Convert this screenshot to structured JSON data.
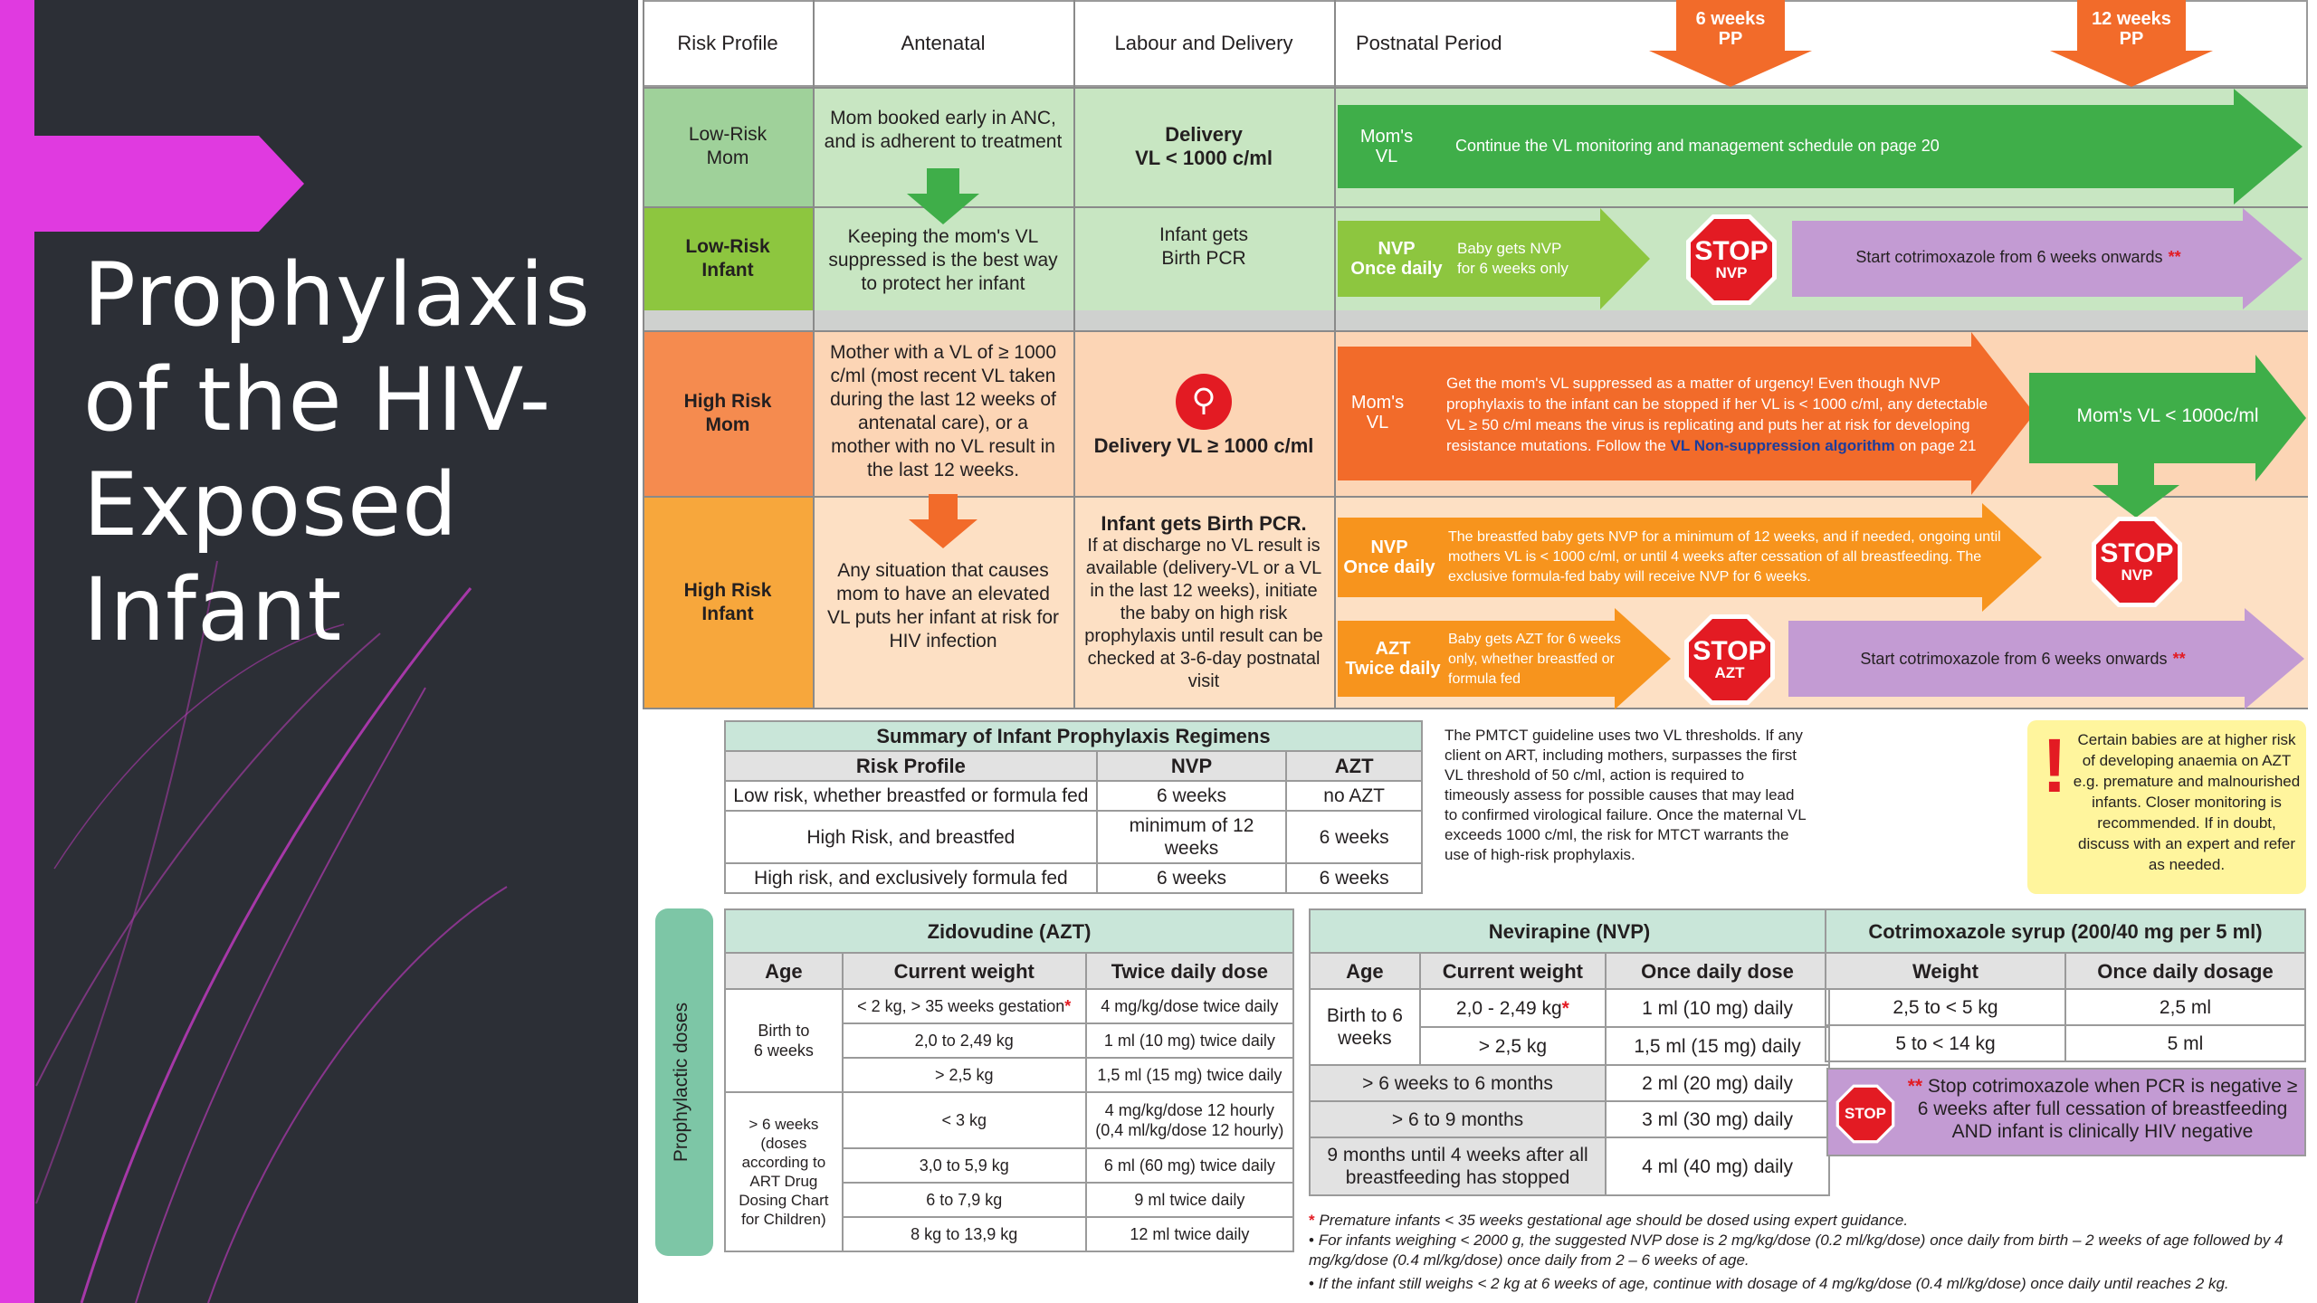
{
  "slide": {
    "title_lines": [
      "Prophylaxis",
      "of the HIV-",
      "Exposed",
      "Infant"
    ]
  },
  "colors": {
    "panel": "#2c2f36",
    "accent": "#e03ae0",
    "green_dark": "#3fae49",
    "green_mid": "#8dc63f",
    "green_light": "#c8e6c2",
    "orange_dark": "#f26b2a",
    "orange_mid": "#f7941d",
    "orange_light": "#fcd5b5",
    "purple": "#c39bd3",
    "stop_red": "#e31b23",
    "teal": "#7dc6a6",
    "yellow_note": "#fff59d"
  },
  "header": {
    "risk_profile": "Risk Profile",
    "antenatal": "Antenatal",
    "labour": "Labour and Delivery",
    "postnatal": "Postnatal Period",
    "marker_6": "6 weeks\nPP",
    "marker_12": "12 weeks\nPP"
  },
  "low": {
    "mom_label": "Low-Risk\nMom",
    "mom_antenatal": "Mom booked early in ANC,\nand is adherent to treatment",
    "mom_delivery": "Delivery\nVL < 1000 c/ml",
    "mom_arrow_label": "Mom's\nVL",
    "mom_arrow_text": "Continue the VL monitoring and management schedule on page 20",
    "infant_label": "Low-Risk\nInfant",
    "infant_antenatal": "Keeping the mom's VL\nsuppressed is the best way\nto protect her infant",
    "infant_delivery": "Infant gets\nBirth PCR",
    "nvp_label": "NVP\nOnce daily",
    "nvp_text": "Baby gets NVP\nfor 6 weeks only",
    "stop_word": "STOP",
    "stop_nvp": "NVP",
    "cotri_text": "Start cotrimoxazole from 6 weeks onwards",
    "stars": "**"
  },
  "high": {
    "mom_label": "High Risk\nMom",
    "mom_antenatal": "Mother with a VL of ≥ 1000 c/ml (most recent VL taken during the last 12 weeks of antenatal care), or a mother with no VL result in the last 12 weeks.",
    "mom_delivery": "Delivery VL ≥ 1000 c/ml",
    "mom_arrow_label": "Mom's\nVL",
    "mom_arrow_text_a": "Get the mom's VL suppressed as a matter of urgency! Even though NVP prophylaxis to the infant can be stopped if her VL is < 1000 c/ml, any detectable VL ≥ 50 c/ml means the virus is replicating and puts her at risk for developing resistance mutations. Follow the ",
    "mom_arrow_link": "VL Non-suppression algorithm",
    "mom_arrow_text_b": " on page 21",
    "mom_suppressed": "Mom's VL < 1000c/ml",
    "infant_label": "High Risk\nInfant",
    "infant_antenatal": "Any situation that causes mom to have an elevated VL puts her infant at risk for HIV infection",
    "infant_delivery_bold": "Infant gets Birth PCR.",
    "infant_delivery": "If at discharge no VL result is available (delivery-VL or a VL in the last 12 weeks), initiate the baby on high risk prophylaxis until result can be checked at 3-6-day postnatal visit",
    "nvp_label": "NVP\nOnce daily",
    "nvp_text": "The breastfed baby gets NVP for a minimum of 12 weeks, and if needed, ongoing until mothers VL is < 1000 c/ml, or until 4 weeks after cessation of all breastfeeding. The exclusive formula-fed baby will receive NVP for 6 weeks.",
    "azt_label": "AZT\nTwice daily",
    "azt_text": "Baby gets AZT for 6 weeks only, whether breastfed or formula fed",
    "stop_word": "STOP",
    "stop_nvp": "NVP",
    "stop_azt": "AZT",
    "cotri_text": "Start cotrimoxazole from 6 weeks onwards",
    "stars": "**"
  },
  "summary": {
    "title": "Summary of Infant Prophylaxis Regimens",
    "headers": [
      "Risk Profile",
      "NVP",
      "AZT"
    ],
    "rows": [
      [
        "Low risk, whether breastfed or formula fed",
        "6 weeks",
        "no AZT"
      ],
      [
        "High Risk, and breastfed",
        "minimum of 12 weeks",
        "6 weeks"
      ],
      [
        "High risk, and exclusively formula fed",
        "6 weeks",
        "6 weeks"
      ]
    ]
  },
  "pmtct_note": "The PMTCT guideline uses two VL thresholds. If any client on ART, including mothers, surpasses the first VL threshold of 50 c/ml, action is required to timeously assess for possible causes that may lead to confirmed virological failure. Once the maternal VL exceeds 1000 c/ml, the risk for MTCT warrants the use of high-risk prophylaxis.",
  "warning_note": "Certain babies are at higher risk of developing anaemia on AZT e.g. premature and malnourished infants. Closer monitoring is recommended. If in doubt, discuss with an expert and refer as needed.",
  "doses_label": "Prophylactic doses",
  "azt_table": {
    "title": "Zidovudine (AZT)",
    "headers": [
      "Age",
      "Current weight",
      "Twice daily dose"
    ],
    "age1": "Birth to\n6 weeks",
    "age2": "> 6 weeks\n(doses\naccording to\nART Drug\nDosing Chart\nfor Children)",
    "rows1": [
      [
        "< 2 kg, > 35 weeks gestation",
        "4 mg/kg/dose twice daily"
      ],
      [
        "2,0 to 2,49 kg",
        "1 ml (10 mg) twice daily"
      ],
      [
        "> 2,5 kg",
        "1,5 ml (15 mg) twice daily"
      ]
    ],
    "rows2": [
      [
        "< 3 kg",
        "4 mg/kg/dose 12 hourly\n(0,4 ml/kg/dose 12 hourly)"
      ],
      [
        "3,0 to 5,9 kg",
        "6 ml (60 mg) twice daily"
      ],
      [
        "6 to 7,9 kg",
        "9 ml twice daily"
      ],
      [
        "8 kg to 13,9 kg",
        "12 ml twice daily"
      ]
    ],
    "star": "*"
  },
  "nvp_table": {
    "title": "Nevirapine (NVP)",
    "headers": [
      "Age",
      "Current weight",
      "Once daily dose"
    ],
    "age1": "Birth to 6\nweeks",
    "rows1": [
      [
        "2,0 - 2,49 kg",
        "1 ml (10 mg) daily"
      ],
      [
        "> 2,5 kg",
        "1,5 ml (15 mg) daily"
      ]
    ],
    "rows2": [
      [
        "> 6 weeks to 6 months",
        "2 ml (20 mg) daily"
      ],
      [
        "> 6 to 9 months",
        "3 ml (30 mg) daily"
      ],
      [
        "9 months until 4 weeks after all breastfeeding has stopped",
        "4 ml (40 mg) daily"
      ]
    ],
    "star": "*"
  },
  "cotri_table": {
    "title": "Cotrimoxazole syrup (200/40 mg per 5 ml)",
    "headers": [
      "Weight",
      "Once daily dosage"
    ],
    "rows": [
      [
        "2,5 to < 5 kg",
        "2,5 ml"
      ],
      [
        "5 to < 14 kg",
        "5 ml"
      ]
    ],
    "stop_word": "STOP",
    "stop_note_stars": "**",
    "stop_note": "Stop cotrimoxazole when PCR is negative ≥ 6 weeks after full cessation of breastfeeding AND infant is clinically HIV negative"
  },
  "footnotes": {
    "star": "*",
    "f1": "Premature infants < 35 weeks gestational age should be dosed using expert guidance.",
    "bullet": "•",
    "f2": "For infants weighing < 2000 g, the suggested NVP dose is 2 mg/kg/dose (0.2 ml/kg/dose) once daily from birth – 2 weeks of age followed by 4 mg/kg/dose (0.4 ml/kg/dose) once daily from 2 – 6 weeks of age.",
    "f3": "If the infant still weighs < 2 kg at 6 weeks of age, continue with dosage of 4 mg/kg/dose (0.4 ml/kg/dose) once daily until reaches 2 kg."
  }
}
